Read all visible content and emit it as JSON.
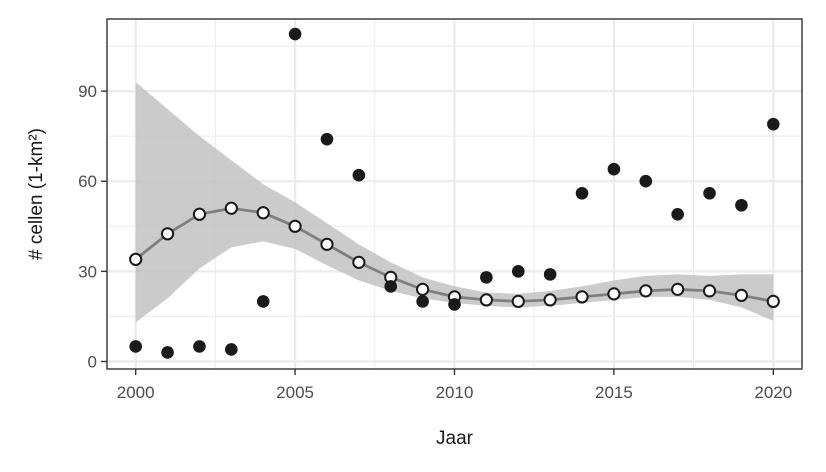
{
  "chart_data": {
    "type": "scatter",
    "xlabel": "Jaar",
    "ylabel": "# cellen (1-km²)",
    "xlim": [
      1999.1,
      2020.9
    ],
    "ylim": [
      -2.5,
      114
    ],
    "x_ticks": [
      2000,
      2005,
      2010,
      2015,
      2020
    ],
    "y_ticks": [
      0,
      30,
      60,
      90
    ],
    "grid": true,
    "colors": {
      "observed": "#1a1a1a",
      "fitted_stroke": "#1a1a1a",
      "fitted_fill": "#ffffff",
      "trend_line": "#7f7f7f",
      "ribbon": "#bebebe",
      "gridline": "#ebebeb",
      "panel_border": "#333333"
    },
    "series": [
      {
        "role": "observed",
        "marker": "filled-circle",
        "x": [
          2000,
          2001,
          2002,
          2003,
          2004,
          2005,
          2006,
          2007,
          2008,
          2009,
          2010,
          2011,
          2012,
          2013,
          2014,
          2015,
          2016,
          2017,
          2018,
          2019,
          2020
        ],
        "y": [
          5,
          3,
          5,
          4,
          20,
          109,
          74,
          62,
          25,
          20,
          19,
          28,
          30,
          29,
          56,
          64,
          60,
          49,
          56,
          52,
          79
        ]
      },
      {
        "role": "fitted",
        "marker": "open-circle",
        "x": [
          2000,
          2001,
          2002,
          2003,
          2004,
          2005,
          2006,
          2007,
          2008,
          2009,
          2010,
          2011,
          2012,
          2013,
          2014,
          2015,
          2016,
          2017,
          2018,
          2019,
          2020
        ],
        "y": [
          34,
          42.5,
          49,
          51,
          49.5,
          45,
          39,
          33,
          28,
          24,
          21.5,
          20.5,
          20,
          20.5,
          21.5,
          22.5,
          23.5,
          24,
          23.5,
          22,
          20
        ],
        "lower": [
          13,
          21,
          31,
          38,
          40,
          37.5,
          32,
          27,
          23.5,
          21,
          19.5,
          18.5,
          18,
          18.5,
          19.5,
          20.5,
          21.5,
          21.5,
          20.5,
          18,
          13.5
        ],
        "upper": [
          93,
          84,
          75,
          67,
          59,
          53,
          46,
          39,
          33,
          28,
          25,
          23,
          22.5,
          23.5,
          25,
          27,
          28.5,
          29,
          28.5,
          29,
          29
        ]
      }
    ]
  }
}
